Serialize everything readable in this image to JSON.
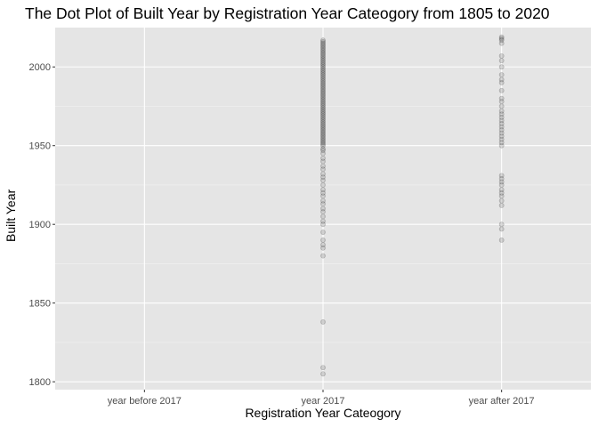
{
  "chart_data": {
    "type": "scatter",
    "title": "The Dot Plot of Built Year by Registration Year Cateogory from 1805 to 2020",
    "xlabel": "Registration Year Cateogory",
    "ylabel": "Built Year",
    "categories": [
      "year before 2017",
      "year 2017",
      "year after 2017"
    ],
    "ylim": [
      1795,
      2025
    ],
    "yticks": [
      1800,
      1850,
      1900,
      1950,
      2000
    ],
    "grid": true,
    "point_color": "#000000",
    "panel_background": "#e5e5e5",
    "series": [
      {
        "category": "year before 2017",
        "values": []
      },
      {
        "category": "year 2017",
        "values": [
          1805,
          1809,
          1838,
          1880,
          1885,
          1887,
          1890,
          1895,
          1900,
          1902,
          1905,
          1908,
          1910,
          1913,
          1915,
          1918,
          1920,
          1922,
          1925,
          1928,
          1930,
          1932,
          1935,
          1937,
          1940,
          1942,
          1945,
          1947,
          1948,
          1950,
          1951,
          1952,
          1953,
          1954,
          1955,
          1956,
          1957,
          1958,
          1959,
          1960,
          1961,
          1962,
          1963,
          1964,
          1965,
          1966,
          1967,
          1968,
          1969,
          1970,
          1971,
          1972,
          1973,
          1974,
          1975,
          1976,
          1977,
          1978,
          1979,
          1980,
          1981,
          1982,
          1983,
          1984,
          1985,
          1986,
          1987,
          1988,
          1989,
          1990,
          1991,
          1992,
          1993,
          1994,
          1995,
          1996,
          1997,
          1998,
          1999,
          2000,
          2001,
          2002,
          2003,
          2004,
          2005,
          2006,
          2007,
          2008,
          2009,
          2010,
          2011,
          2012,
          2013,
          2014,
          2015,
          2016,
          2017
        ]
      },
      {
        "category": "year after 2017",
        "values": [
          1890,
          1897,
          1900,
          1912,
          1915,
          1918,
          1920,
          1922,
          1925,
          1927,
          1929,
          1931,
          1950,
          1952,
          1954,
          1956,
          1958,
          1960,
          1962,
          1964,
          1966,
          1968,
          1970,
          1972,
          1975,
          1978,
          1980,
          1985,
          1990,
          1992,
          1995,
          2000,
          2004,
          2007,
          2015,
          2017,
          2018,
          2019
        ]
      }
    ]
  }
}
